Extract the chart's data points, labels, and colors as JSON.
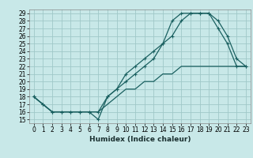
{
  "title": "",
  "xlabel": "Humidex (Indice chaleur)",
  "ylabel": "",
  "bg_color": "#c8e8e8",
  "grid_color": "#a0c8c8",
  "line_color": "#1a6060",
  "xlim": [
    -0.5,
    23.5
  ],
  "ylim": [
    14.5,
    29.5
  ],
  "xticks": [
    0,
    1,
    2,
    3,
    4,
    5,
    6,
    7,
    8,
    9,
    10,
    11,
    12,
    13,
    14,
    15,
    16,
    17,
    18,
    19,
    20,
    21,
    22,
    23
  ],
  "yticks": [
    15,
    16,
    17,
    18,
    19,
    20,
    21,
    22,
    23,
    24,
    25,
    26,
    27,
    28,
    29
  ],
  "line1_x": [
    0,
    1,
    2,
    3,
    4,
    5,
    6,
    7,
    8,
    9,
    10,
    11,
    12,
    13,
    14,
    15,
    16,
    17,
    18,
    19,
    20,
    21,
    22,
    23
  ],
  "line1_y": [
    18,
    17,
    16,
    16,
    16,
    16,
    16,
    15,
    18,
    19,
    21,
    22,
    23,
    24,
    25,
    26,
    28,
    29,
    29,
    29,
    28,
    26,
    23,
    22
  ],
  "line2_x": [
    0,
    1,
    2,
    3,
    4,
    5,
    6,
    7,
    8,
    9,
    10,
    11,
    12,
    13,
    14,
    15,
    16,
    17,
    18,
    19,
    20,
    21,
    22,
    23
  ],
  "line2_y": [
    18,
    17,
    16,
    16,
    16,
    16,
    16,
    16,
    18,
    19,
    20,
    21,
    22,
    23,
    25,
    28,
    29,
    29,
    29,
    29,
    27,
    25,
    22,
    22
  ],
  "line3_x": [
    0,
    1,
    2,
    3,
    4,
    5,
    6,
    7,
    8,
    9,
    10,
    11,
    12,
    13,
    14,
    15,
    16,
    17,
    18,
    19,
    20,
    21,
    22,
    23
  ],
  "line3_y": [
    18,
    17,
    16,
    16,
    16,
    16,
    16,
    16,
    17,
    18,
    19,
    19,
    20,
    20,
    21,
    21,
    22,
    22,
    22,
    22,
    22,
    22,
    22,
    22
  ],
  "marker": "+",
  "markersize": 3,
  "linewidth": 0.9,
  "tick_fontsize": 5.5,
  "xlabel_fontsize": 6.5
}
